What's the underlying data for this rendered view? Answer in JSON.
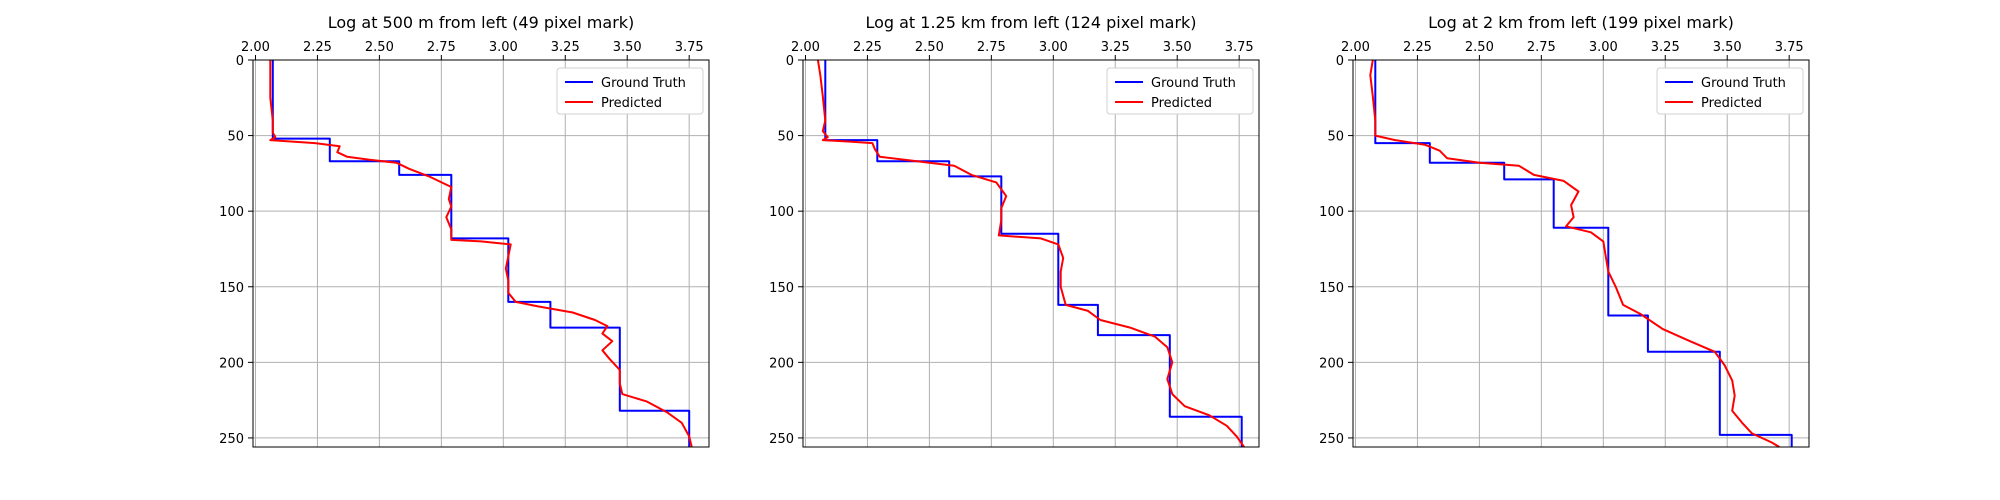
{
  "chart_data": [
    {
      "type": "line",
      "title": "Log at 500 m from left (49 pixel mark)",
      "xlabel": "",
      "ylabel": "",
      "xlim": [
        1.99,
        3.83
      ],
      "ylim": [
        256,
        0
      ],
      "x_ticks": [
        "2.00",
        "2.25",
        "2.50",
        "2.75",
        "3.00",
        "3.25",
        "3.50",
        "3.75"
      ],
      "y_ticks": [
        "0",
        "50",
        "100",
        "150",
        "200",
        "250"
      ],
      "grid": true,
      "legend_position": "upper-right",
      "series": [
        {
          "name": "Ground Truth",
          "color": "#0000ff",
          "points": [
            [
              2.07,
              0
            ],
            [
              2.07,
              52
            ],
            [
              2.3,
              52
            ],
            [
              2.3,
              67
            ],
            [
              2.58,
              67
            ],
            [
              2.58,
              76
            ],
            [
              2.79,
              76
            ],
            [
              2.79,
              118
            ],
            [
              3.02,
              118
            ],
            [
              3.02,
              160
            ],
            [
              3.19,
              160
            ],
            [
              3.19,
              177
            ],
            [
              3.47,
              177
            ],
            [
              3.47,
              232
            ],
            [
              3.75,
              232
            ],
            [
              3.75,
              256
            ]
          ]
        },
        {
          "name": "Predicted",
          "color": "#ff0000",
          "points": [
            [
              2.06,
              0
            ],
            [
              2.06,
              12
            ],
            [
              2.06,
              25
            ],
            [
              2.07,
              40
            ],
            [
              2.07,
              48
            ],
            [
              2.08,
              51
            ],
            [
              2.06,
              53
            ],
            [
              2.15,
              54
            ],
            [
              2.24,
              55
            ],
            [
              2.34,
              57
            ],
            [
              2.33,
              61
            ],
            [
              2.37,
              64
            ],
            [
              2.46,
              66
            ],
            [
              2.57,
              68
            ],
            [
              2.62,
              72
            ],
            [
              2.7,
              77
            ],
            [
              2.79,
              84
            ],
            [
              2.78,
              92
            ],
            [
              2.79,
              97
            ],
            [
              2.77,
              104
            ],
            [
              2.79,
              112
            ],
            [
              2.79,
              119
            ],
            [
              2.91,
              120
            ],
            [
              3.03,
              122
            ],
            [
              3.02,
              130
            ],
            [
              3.01,
              138
            ],
            [
              3.02,
              146
            ],
            [
              3.02,
              154
            ],
            [
              3.05,
              160
            ],
            [
              3.14,
              163
            ],
            [
              3.28,
              167
            ],
            [
              3.37,
              172
            ],
            [
              3.42,
              176
            ],
            [
              3.4,
              181
            ],
            [
              3.44,
              186
            ],
            [
              3.4,
              192
            ],
            [
              3.43,
              198
            ],
            [
              3.47,
              205
            ],
            [
              3.47,
              214
            ],
            [
              3.48,
              221
            ],
            [
              3.58,
              226
            ],
            [
              3.66,
              233
            ],
            [
              3.72,
              240
            ],
            [
              3.75,
              249
            ],
            [
              3.76,
              256
            ]
          ]
        }
      ]
    },
    {
      "type": "line",
      "title": "Log at 1.25 km from left (124 pixel mark)",
      "xlabel": "",
      "ylabel": "",
      "xlim": [
        1.99,
        3.83
      ],
      "ylim": [
        256,
        0
      ],
      "x_ticks": [
        "2.00",
        "2.25",
        "2.50",
        "2.75",
        "3.00",
        "3.25",
        "3.50",
        "3.75"
      ],
      "y_ticks": [
        "0",
        "50",
        "100",
        "150",
        "200",
        "250"
      ],
      "grid": true,
      "legend_position": "upper-right",
      "series": [
        {
          "name": "Ground Truth",
          "color": "#0000ff",
          "points": [
            [
              2.08,
              0
            ],
            [
              2.08,
              53
            ],
            [
              2.29,
              53
            ],
            [
              2.29,
              67
            ],
            [
              2.58,
              67
            ],
            [
              2.58,
              77
            ],
            [
              2.79,
              77
            ],
            [
              2.79,
              115
            ],
            [
              3.02,
              115
            ],
            [
              3.02,
              162
            ],
            [
              3.18,
              162
            ],
            [
              3.18,
              182
            ],
            [
              3.47,
              182
            ],
            [
              3.47,
              236
            ],
            [
              3.76,
              236
            ],
            [
              3.76,
              256
            ]
          ]
        },
        {
          "name": "Predicted",
          "color": "#ff0000",
          "points": [
            [
              2.05,
              0
            ],
            [
              2.06,
              10
            ],
            [
              2.07,
              24
            ],
            [
              2.08,
              40
            ],
            [
              2.07,
              47
            ],
            [
              2.09,
              51
            ],
            [
              2.07,
              53
            ],
            [
              2.18,
              54
            ],
            [
              2.27,
              55
            ],
            [
              2.28,
              59
            ],
            [
              2.3,
              64
            ],
            [
              2.45,
              67
            ],
            [
              2.6,
              70
            ],
            [
              2.67,
              76
            ],
            [
              2.77,
              81
            ],
            [
              2.81,
              90
            ],
            [
              2.79,
              98
            ],
            [
              2.79,
              106
            ],
            [
              2.78,
              116
            ],
            [
              2.95,
              118
            ],
            [
              3.02,
              122
            ],
            [
              3.04,
              131
            ],
            [
              3.03,
              140
            ],
            [
              3.03,
              150
            ],
            [
              3.05,
              162
            ],
            [
              3.14,
              166
            ],
            [
              3.19,
              172
            ],
            [
              3.31,
              177
            ],
            [
              3.41,
              183
            ],
            [
              3.46,
              190
            ],
            [
              3.48,
              200
            ],
            [
              3.46,
              211
            ],
            [
              3.48,
              221
            ],
            [
              3.53,
              229
            ],
            [
              3.63,
              235
            ],
            [
              3.7,
              242
            ],
            [
              3.74,
              249
            ],
            [
              3.77,
              256
            ]
          ]
        }
      ]
    },
    {
      "type": "line",
      "title": "Log at 2 km from left (199 pixel mark)",
      "xlabel": "",
      "ylabel": "",
      "xlim": [
        1.99,
        3.83
      ],
      "ylim": [
        256,
        0
      ],
      "x_ticks": [
        "2.00",
        "2.25",
        "2.50",
        "2.75",
        "3.00",
        "3.25",
        "3.50",
        "3.75"
      ],
      "y_ticks": [
        "0",
        "50",
        "100",
        "150",
        "200",
        "250"
      ],
      "grid": true,
      "legend_position": "upper-right",
      "series": [
        {
          "name": "Ground Truth",
          "color": "#0000ff",
          "points": [
            [
              2.08,
              0
            ],
            [
              2.08,
              55
            ],
            [
              2.3,
              55
            ],
            [
              2.3,
              68
            ],
            [
              2.6,
              68
            ],
            [
              2.6,
              79
            ],
            [
              2.8,
              79
            ],
            [
              2.8,
              111
            ],
            [
              3.02,
              111
            ],
            [
              3.02,
              169
            ],
            [
              3.18,
              169
            ],
            [
              3.18,
              193
            ],
            [
              3.47,
              193
            ],
            [
              3.47,
              248
            ],
            [
              3.76,
              248
            ],
            [
              3.76,
              256
            ]
          ]
        },
        {
          "name": "Predicted",
          "color": "#ff0000",
          "points": [
            [
              2.07,
              0
            ],
            [
              2.06,
              10
            ],
            [
              2.07,
              24
            ],
            [
              2.08,
              40
            ],
            [
              2.08,
              50
            ],
            [
              2.16,
              53
            ],
            [
              2.28,
              56
            ],
            [
              2.34,
              60
            ],
            [
              2.37,
              65
            ],
            [
              2.5,
              68
            ],
            [
              2.66,
              70
            ],
            [
              2.72,
              76
            ],
            [
              2.84,
              80
            ],
            [
              2.9,
              87
            ],
            [
              2.87,
              96
            ],
            [
              2.88,
              104
            ],
            [
              2.85,
              110
            ],
            [
              2.95,
              114
            ],
            [
              3.0,
              120
            ],
            [
              3.01,
              130
            ],
            [
              3.02,
              140
            ],
            [
              3.05,
              150
            ],
            [
              3.08,
              162
            ],
            [
              3.15,
              168
            ],
            [
              3.24,
              178
            ],
            [
              3.35,
              186
            ],
            [
              3.45,
              193
            ],
            [
              3.49,
              202
            ],
            [
              3.52,
              212
            ],
            [
              3.53,
              222
            ],
            [
              3.52,
              232
            ],
            [
              3.56,
              240
            ],
            [
              3.6,
              247
            ],
            [
              3.68,
              253
            ],
            [
              3.71,
              256
            ]
          ]
        }
      ]
    }
  ]
}
